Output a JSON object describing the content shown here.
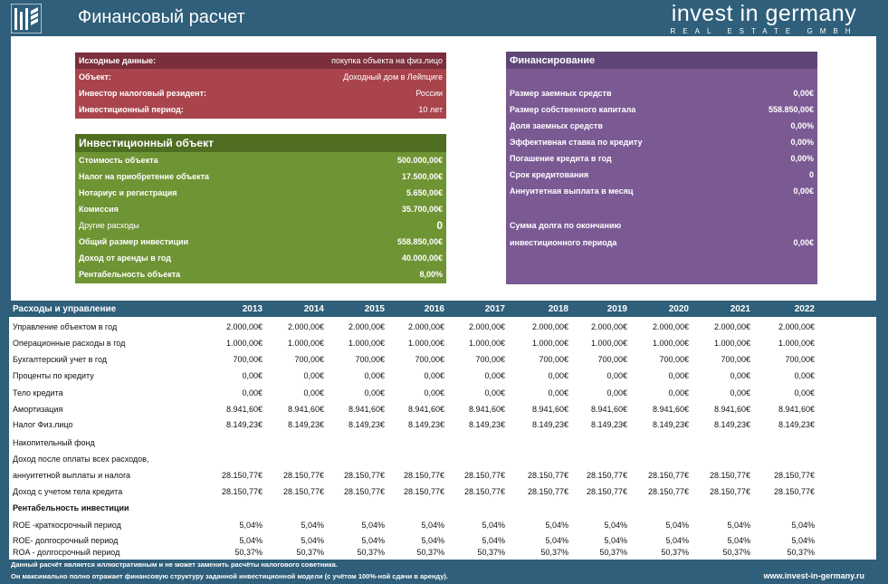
{
  "header": {
    "title": "Финансовый расчет",
    "brand_name": "invest in germany",
    "brand_sub": "REAL ESTATE GMBH",
    "logo_icon": "building-logo-icon"
  },
  "input": {
    "rows": [
      {
        "label": "Исходные данные:",
        "value": "покупка объекта на физ.лицо"
      },
      {
        "label": "Объект:",
        "value": "Доходный дом в Лейпциге"
      },
      {
        "label": "Инвестор налоговый резидент:",
        "value": "России"
      },
      {
        "label": "Инвестиционный период:",
        "value": "10 лет"
      }
    ]
  },
  "object": {
    "title": "Инвестиционный объект",
    "rows": [
      {
        "label": "Стоимость объекта",
        "value": "500.000,00€"
      },
      {
        "label": "Налог на приобретение объекта",
        "value": "17.500,00€"
      },
      {
        "label": "Нотариус и регистрация",
        "value": "5.650,00€"
      },
      {
        "label": "Комиссия",
        "value": "35.700,00€"
      },
      {
        "label": "Другие расходы",
        "value": "0"
      },
      {
        "label": "Общий размер инвестиции",
        "value": "558.850,00€"
      },
      {
        "label": "Доход от аренды в год",
        "value": "40.000,00€"
      },
      {
        "label": "Рентабельность объекта",
        "value": "8,00%"
      }
    ]
  },
  "financing": {
    "title": "Финансирование",
    "rows": [
      {
        "label": "Размер заемных средств",
        "value": "0,00€"
      },
      {
        "label": "Размер собственного капитала",
        "value": "558.850,00€"
      },
      {
        "label": "Доля заемных средств",
        "value": "0,00%"
      },
      {
        "label": "Эффективная ставка по кредиту",
        "value": "0,00%"
      },
      {
        "label": "Погашение кредита в год",
        "value": "0,00%"
      },
      {
        "label": "Срок кредитования",
        "value": "0"
      },
      {
        "label": "Аннуитетная выплата в месяц",
        "value": "0,00€"
      },
      {
        "label": "Сумма долга по окончанию",
        "value": ""
      },
      {
        "label": "инвестиционного периода",
        "value": "0,00€"
      }
    ]
  },
  "ops": {
    "title": "Расходы и управление",
    "years": [
      "2013",
      "2014",
      "2015",
      "2016",
      "2017",
      "2018",
      "2019",
      "2020",
      "2021",
      "2022"
    ],
    "rows": [
      {
        "label": "Управление объектом в год",
        "values": [
          "2.000,00€",
          "2.000,00€",
          "2.000,00€",
          "2.000,00€",
          "2.000,00€",
          "2.000,00€",
          "2.000,00€",
          "2.000,00€",
          "2.000,00€",
          "2.000,00€"
        ]
      },
      {
        "label": "Операционные расходы в год",
        "values": [
          "1.000,00€",
          "1.000,00€",
          "1.000,00€",
          "1.000,00€",
          "1.000,00€",
          "1.000,00€",
          "1.000,00€",
          "1.000,00€",
          "1.000,00€",
          "1.000,00€"
        ]
      },
      {
        "label": "Бухгалтерский учет в год",
        "values": [
          "700,00€",
          "700,00€",
          "700,00€",
          "700,00€",
          "700,00€",
          "700,00€",
          "700,00€",
          "700,00€",
          "700,00€",
          "700,00€"
        ]
      },
      {
        "label": "Проценты по кредиту",
        "values": [
          "0,00€",
          "0,00€",
          "0,00€",
          "0,00€",
          "0,00€",
          "0,00€",
          "0,00€",
          "0,00€",
          "0,00€",
          "0,00€"
        ]
      },
      {
        "label": "Тело кредита",
        "values": [
          "0,00€",
          "0,00€",
          "0,00€",
          "0,00€",
          "0,00€",
          "0,00€",
          "0,00€",
          "0,00€",
          "0,00€",
          "0,00€"
        ]
      },
      {
        "label": "Амортизация",
        "values": [
          "8.941,60€",
          "8.941,60€",
          "8.941,60€",
          "8.941,60€",
          "8.941,60€",
          "8.941,60€",
          "8.941,60€",
          "8.941,60€",
          "8.941,60€",
          "8.941,60€"
        ]
      },
      {
        "label": "Налог Физ.лицо",
        "values": [
          "8.149,23€",
          "8.149,23€",
          "8.149,23€",
          "8.149,23€",
          "8.149,23€",
          "8.149,23€",
          "8.149,23€",
          "8.149,23€",
          "8.149,23€",
          "8.149,23€"
        ]
      },
      {
        "label": "Накопительный фонд",
        "values": []
      },
      {
        "label": "Доход после оплаты всех расходов,",
        "values": []
      },
      {
        "label": "аннуитетной выплаты и налога",
        "values": [
          "28.150,77€",
          "28.150,77€",
          "28.150,77€",
          "28.150,77€",
          "28.150,77€",
          "28.150,77€",
          "28.150,77€",
          "28.150,77€",
          "28.150,77€",
          "28.150,77€"
        ]
      },
      {
        "label": "Доход с учетом тела кредита",
        "values": [
          "28.150,77€",
          "28.150,77€",
          "28.150,77€",
          "28.150,77€",
          "28.150,77€",
          "28.150,77€",
          "28.150,77€",
          "28.150,77€",
          "28.150,77€",
          "28.150,77€"
        ]
      },
      {
        "label": "Рентабельность инвестиции",
        "values": [],
        "bold": true
      },
      {
        "label": "ROE -краткосрочный период",
        "values": [
          "5,04%",
          "5,04%",
          "5,04%",
          "5,04%",
          "5,04%",
          "5,04%",
          "5,04%",
          "5,04%",
          "5,04%",
          "5,04%"
        ]
      },
      {
        "label": "ROE- долгосрочный период",
        "values": [
          "5,04%",
          "5,04%",
          "5,04%",
          "5,04%",
          "5,04%",
          "5,04%",
          "5,04%",
          "5,04%",
          "5,04%",
          "5,04%"
        ]
      },
      {
        "label": "ROA - долгосрочный период",
        "values": [
          "50,37%",
          "50,37%",
          "50,37%",
          "50,37%",
          "50,37%",
          "50,37%",
          "50,37%",
          "50,37%",
          "50,37%",
          "50,37%"
        ]
      }
    ]
  },
  "footer": {
    "note1": "Данный расчёт является иллюстративным и не может заменить расчёты налогового советника.",
    "note2": "Он максимально полно отражает финансовую структуру заданной инвестиционной модели (с учётом 100%-ной сдачи в аренду).",
    "url": "www.invest-in-germany.ru"
  }
}
